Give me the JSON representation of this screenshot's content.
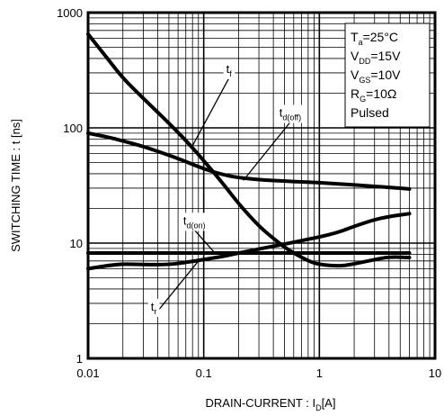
{
  "chart_data": {
    "type": "line",
    "xlabel": {
      "main": "DRAIN-CURRENT : I",
      "sub": "D",
      "tail": "[A]"
    },
    "ylabel": "SWITCHING TIME : t [ns]",
    "xscale": "log",
    "yscale": "log",
    "xlim": [
      0.01,
      10
    ],
    "ylim": [
      1,
      1000
    ],
    "grid": true,
    "x_ticks": [
      {
        "value": 0.01,
        "label": "0.01"
      },
      {
        "value": 0.1,
        "label": "0.1"
      },
      {
        "value": 1,
        "label": "1"
      },
      {
        "value": 10,
        "label": "10"
      }
    ],
    "y_ticks": [
      {
        "value": 1,
        "label": "1"
      },
      {
        "value": 10,
        "label": "10"
      },
      {
        "value": 100,
        "label": "100"
      },
      {
        "value": 1000,
        "label": "1000"
      }
    ],
    "conditions": [
      {
        "main": "T",
        "sub": "a",
        "tail": "=25°C"
      },
      {
        "main": "V",
        "sub": "DD",
        "tail": "=15V"
      },
      {
        "main": "V",
        "sub": "GS",
        "tail": "=10V"
      },
      {
        "main": "R",
        "sub": "G",
        "tail": "=10Ω"
      },
      {
        "main": "Pulsed",
        "sub": "",
        "tail": ""
      }
    ],
    "series": [
      {
        "name": "t_f",
        "label": {
          "main": "t",
          "sub": "f"
        },
        "points": [
          [
            0.01,
            650
          ],
          [
            0.015,
            390
          ],
          [
            0.02,
            270
          ],
          [
            0.03,
            180
          ],
          [
            0.05,
            110
          ],
          [
            0.07,
            78
          ],
          [
            0.1,
            52
          ],
          [
            0.15,
            32
          ],
          [
            0.2,
            22
          ],
          [
            0.3,
            14
          ],
          [
            0.4,
            11
          ],
          [
            0.5,
            9.2
          ],
          [
            0.6,
            8.2
          ],
          [
            0.8,
            7
          ],
          [
            1,
            6.5
          ],
          [
            1.5,
            6.3
          ],
          [
            2,
            6.6
          ],
          [
            3,
            7.2
          ],
          [
            4,
            7.6
          ],
          [
            6,
            7.5
          ]
        ]
      },
      {
        "name": "t_d(off)",
        "label": {
          "main": "t",
          "sub": "d(off)"
        },
        "points": [
          [
            0.01,
            90
          ],
          [
            0.015,
            83
          ],
          [
            0.02,
            77
          ],
          [
            0.03,
            69
          ],
          [
            0.05,
            58
          ],
          [
            0.07,
            51
          ],
          [
            0.1,
            44
          ],
          [
            0.15,
            39
          ],
          [
            0.2,
            37
          ],
          [
            0.3,
            35.5
          ],
          [
            0.5,
            34.5
          ],
          [
            1,
            33.5
          ],
          [
            2,
            32
          ],
          [
            4,
            30.5
          ],
          [
            6,
            29.5
          ]
        ]
      },
      {
        "name": "t_d(on)",
        "label": {
          "main": "t",
          "sub": "d(on)"
        },
        "points": [
          [
            0.01,
            8.2
          ],
          [
            0.1,
            8.2
          ],
          [
            1,
            8.2
          ],
          [
            6,
            8.2
          ]
        ]
      },
      {
        "name": "t_r",
        "label": {
          "main": "t",
          "sub": "r"
        },
        "points": [
          [
            0.01,
            6
          ],
          [
            0.015,
            6.4
          ],
          [
            0.02,
            6.6
          ],
          [
            0.03,
            6.5
          ],
          [
            0.05,
            6.5
          ],
          [
            0.07,
            6.8
          ],
          [
            0.1,
            7.2
          ],
          [
            0.15,
            7.7
          ],
          [
            0.2,
            8.2
          ],
          [
            0.3,
            8.9
          ],
          [
            0.5,
            9.8
          ],
          [
            0.7,
            10.5
          ],
          [
            1,
            11.3
          ],
          [
            1.5,
            12.5
          ],
          [
            2,
            14
          ],
          [
            3,
            16
          ],
          [
            4,
            17
          ],
          [
            6,
            18
          ]
        ]
      }
    ],
    "annotations": [
      {
        "target": "t_f",
        "text_x": 0.165,
        "text_y": 300,
        "arrow_to": [
          0.08,
          70
        ]
      },
      {
        "target": "t_d(off)",
        "text_x": 0.56,
        "text_y": 125,
        "arrow_to": [
          0.22,
          35
        ]
      },
      {
        "target": "t_d(on)",
        "text_x": 0.083,
        "text_y": 14.5,
        "arrow_to": [
          0.125,
          8.2
        ]
      },
      {
        "target": "t_r",
        "text_x": 0.037,
        "text_y": 2.6,
        "arrow_to": [
          0.09,
          7
        ]
      }
    ]
  }
}
